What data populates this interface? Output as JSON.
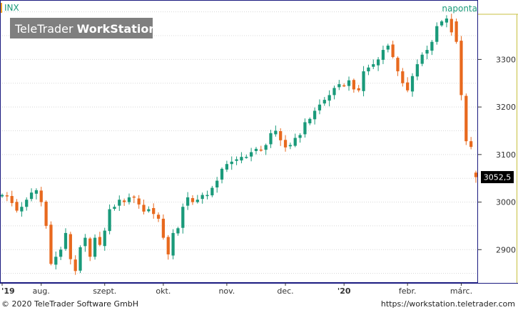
{
  "symbol": "INX",
  "interval": "naponta",
  "logo": {
    "part1": "TeleTrader ",
    "part2": "WorkStation"
  },
  "last_price_label": "3052,5",
  "colors": {
    "up": "#1a9a7a",
    "down": "#e8691e",
    "grid": "#d8d8d8",
    "axis": "#1a1a80",
    "price_box": "#000000"
  },
  "footer": {
    "copyright": "© 2020 TeleTrader Software GmbH",
    "url": "https://workstation.teletrader.com"
  },
  "chart_data": {
    "type": "candlestick",
    "ylim": [
      2833,
      3422
    ],
    "y_ticks": [
      {
        "value": 2900,
        "label": "2900"
      },
      {
        "value": 3000,
        "label": "3000"
      },
      {
        "value": 3100,
        "label": "3100"
      },
      {
        "value": 3200,
        "label": "3200"
      },
      {
        "value": 3300,
        "label": "3300"
      }
    ],
    "x_ticks": [
      {
        "index": 0,
        "label": "'19",
        "bold": true
      },
      {
        "index": 8,
        "label": "aug.",
        "bold": false
      },
      {
        "index": 21,
        "label": "szept.",
        "bold": false
      },
      {
        "index": 33,
        "label": "okt.",
        "bold": false
      },
      {
        "index": 46,
        "label": "nov.",
        "bold": false
      },
      {
        "index": 58,
        "label": "dec.",
        "bold": false
      },
      {
        "index": 70,
        "label": "'20",
        "bold": true
      },
      {
        "index": 83,
        "label": "febr.",
        "bold": false
      },
      {
        "index": 94,
        "label": "márc.",
        "bold": false
      }
    ],
    "close": [
      3015,
      3012,
      2998,
      2982,
      2990,
      3005,
      3020,
      3025,
      3000,
      2950,
      2870,
      2885,
      2900,
      2935,
      2880,
      2855,
      2905,
      2925,
      2885,
      2925,
      2910,
      2940,
      2985,
      2990,
      3005,
      3000,
      3010,
      3010,
      2995,
      2980,
      2985,
      2975,
      2965,
      2925,
      2890,
      2935,
      2945,
      2990,
      3010,
      3000,
      3005,
      3015,
      3015,
      3030,
      3045,
      3070,
      3080,
      3085,
      3090,
      3095,
      3095,
      3105,
      3112,
      3110,
      3120,
      3145,
      3150,
      3130,
      3115,
      3120,
      3135,
      3141,
      3168,
      3175,
      3192,
      3205,
      3215,
      3225,
      3240,
      3248,
      3245,
      3256,
      3237,
      3235,
      3275,
      3283,
      3290,
      3300,
      3320,
      3329,
      3305,
      3275,
      3250,
      3235,
      3265,
      3290,
      3310,
      3320,
      3337,
      3370,
      3380,
      3386,
      3357,
      3337,
      3225,
      3128,
      3116,
      3052.5
    ],
    "x_count": 98
  }
}
